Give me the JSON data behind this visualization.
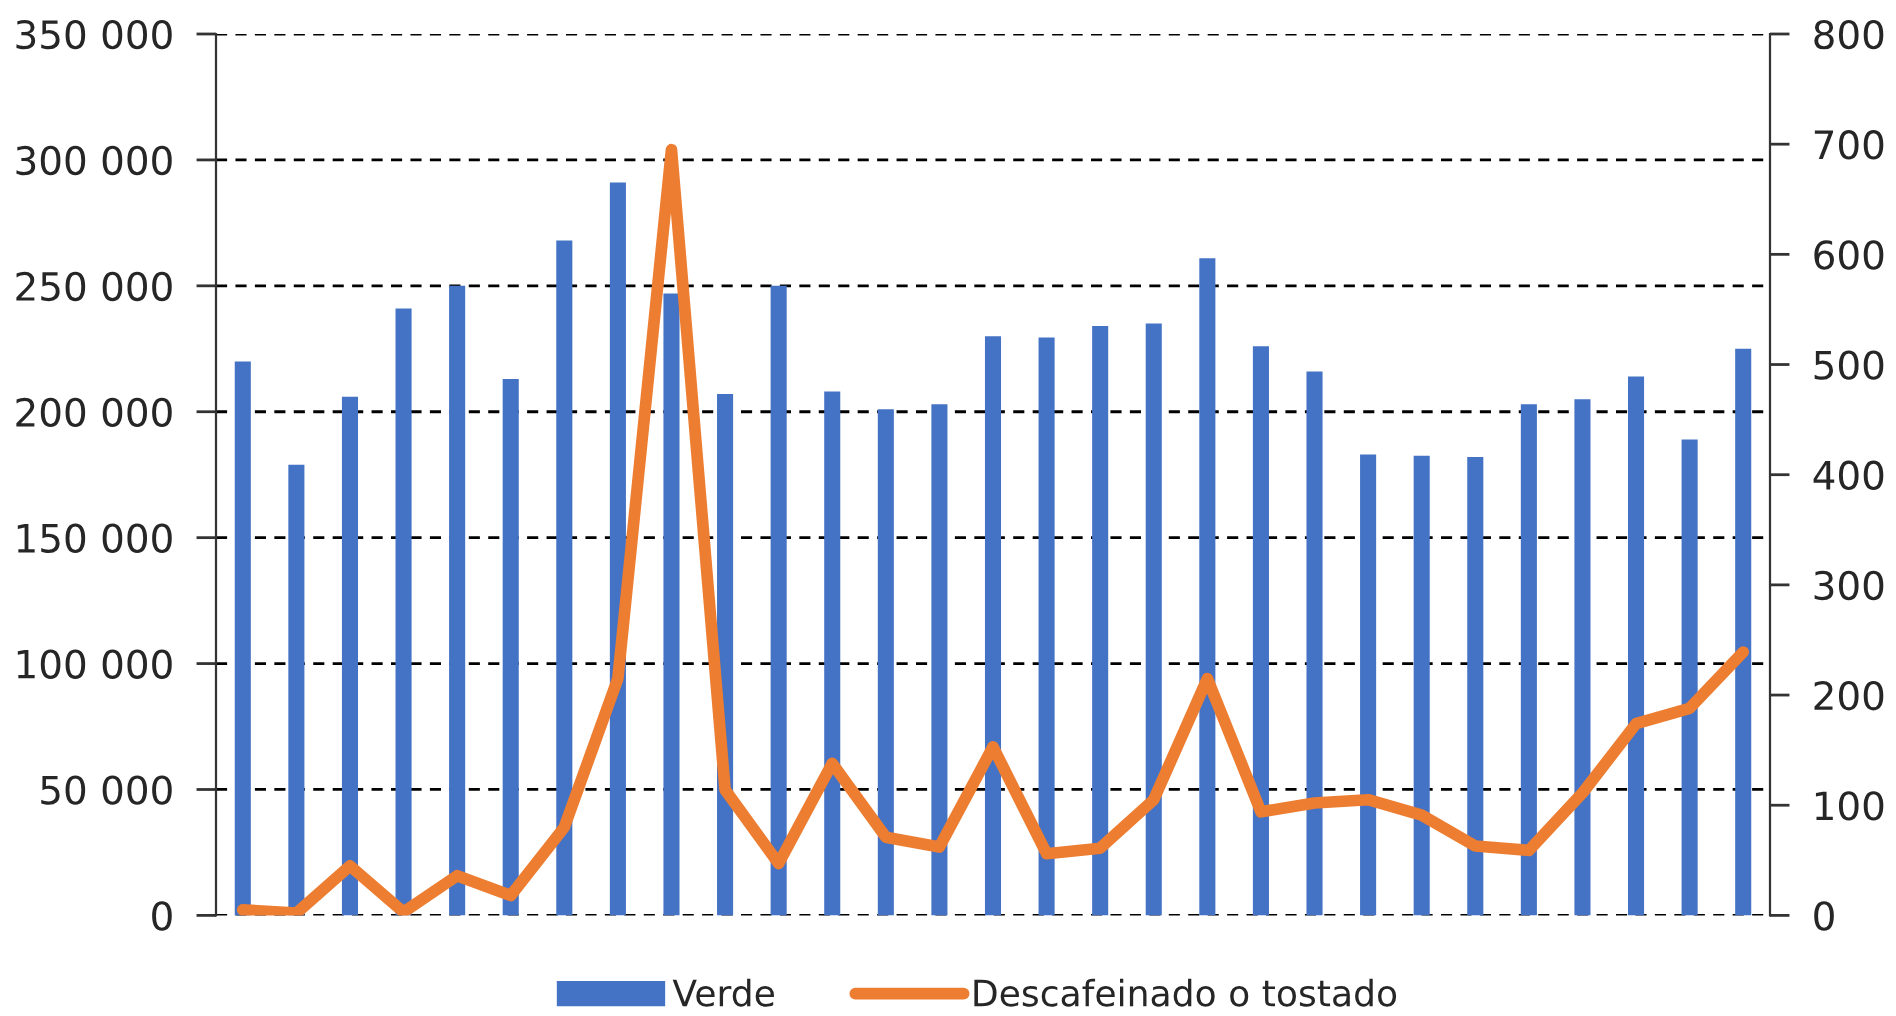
{
  "chart_data": {
    "type": "bar",
    "categories": [
      null,
      null,
      null,
      null,
      null,
      null,
      null,
      null,
      null,
      null,
      null,
      null,
      null,
      null,
      null,
      null,
      null,
      null,
      null,
      null,
      null,
      null,
      null,
      null,
      null,
      null,
      null,
      null,
      null
    ],
    "series": [
      {
        "name": "Verde",
        "color": "#4472c4",
        "values": [
          220000,
          179000,
          206000,
          241000,
          250000,
          213000,
          268000,
          291000,
          247000,
          207000,
          250000,
          208000,
          201000,
          203000,
          230000,
          229500,
          234000,
          235000,
          261000,
          226000,
          216000,
          183000,
          182500,
          182000,
          203000,
          205000,
          214000,
          189000,
          225000
        ]
      },
      {
        "name": "Descafeinado o tostado",
        "type": "line",
        "axis": "y2",
        "color": "#ed7d31",
        "values": [
          5,
          2,
          45,
          3,
          36,
          18,
          80,
          215,
          695,
          114,
          47,
          138,
          71,
          62,
          153,
          56,
          61,
          105,
          215,
          94,
          102,
          105,
          91,
          63,
          59,
          111,
          174,
          188,
          239
        ]
      }
    ],
    "ylim": [
      0,
      350000
    ],
    "yticks": [
      {
        "value": 0,
        "label": "0"
      },
      {
        "value": 50000,
        "label": "50 000"
      },
      {
        "value": 100000,
        "label": "100 000"
      },
      {
        "value": 150000,
        "label": "150 000"
      },
      {
        "value": 200000,
        "label": "200 000"
      },
      {
        "value": 250000,
        "label": "250 000"
      },
      {
        "value": 300000,
        "label": "300 000"
      },
      {
        "value": 350000,
        "label": "350 000"
      }
    ],
    "y2lim": [
      0,
      800
    ],
    "y2ticks": [
      0,
      100,
      200,
      300,
      400,
      500,
      600,
      700,
      800
    ],
    "grid": "y",
    "legend": "bottom"
  }
}
